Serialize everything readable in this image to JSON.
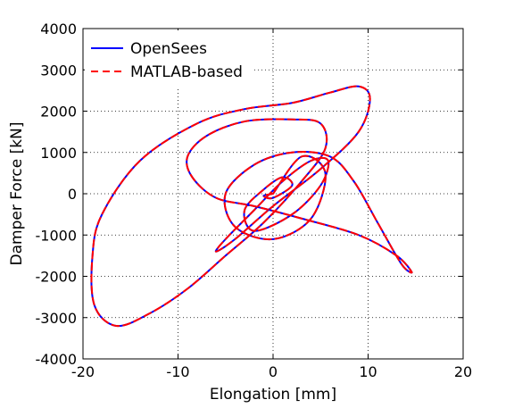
{
  "chart_data": {
    "type": "line",
    "xlabel": "Elongation [mm]",
    "ylabel": "Damper Force [kN]",
    "xlim": [
      -20,
      20
    ],
    "ylim": [
      -4000,
      4000
    ],
    "xticks": [
      -20,
      -10,
      0,
      10,
      20
    ],
    "yticks": [
      -4000,
      -3000,
      -2000,
      -1000,
      0,
      1000,
      2000,
      3000,
      4000
    ],
    "grid": true,
    "legend_position": "top-left",
    "series": [
      {
        "name": "OpenSees",
        "color": "#0000ff",
        "style": "solid",
        "x": [
          0,
          3,
          5.5,
          4,
          0,
          -4,
          -5,
          -2,
          2,
          6,
          8.5,
          11,
          13.5,
          14.6,
          13,
          9,
          3,
          -2,
          -6,
          -8.5,
          -9,
          -7,
          -3,
          2,
          5,
          5.5,
          3,
          -1,
          -5,
          -9,
          -13,
          -16.5,
          -18.8,
          -19,
          -18,
          -14,
          -8,
          -3,
          2,
          6,
          9,
          10.2,
          9,
          5,
          0,
          -4,
          -6,
          -5,
          -2,
          1,
          4,
          5.8,
          5,
          2,
          -2,
          -3,
          -1,
          1,
          2,
          0,
          -1,
          0
        ],
        "y": [
          0,
          900,
          500,
          -600,
          -1100,
          -800,
          0,
          700,
          1000,
          900,
          300,
          -700,
          -1700,
          -1900,
          -1500,
          -1000,
          -600,
          -300,
          -100,
          400,
          900,
          1400,
          1750,
          1800,
          1700,
          1100,
          300,
          -700,
          -1500,
          -2300,
          -2900,
          -3200,
          -2700,
          -1500,
          -500,
          800,
          1700,
          2050,
          2200,
          2450,
          2600,
          2300,
          1500,
          600,
          -300,
          -1100,
          -1400,
          -1100,
          -400,
          300,
          800,
          800,
          200,
          -500,
          -900,
          -400,
          100,
          400,
          200,
          -100,
          -50,
          0
        ]
      },
      {
        "name": "MATLAB-based",
        "color": "#ff0000",
        "style": "dashed",
        "x": [
          0,
          3,
          5.5,
          4,
          0,
          -4,
          -5,
          -2,
          2,
          6,
          8.5,
          11,
          13.5,
          14.6,
          13,
          9,
          3,
          -2,
          -6,
          -8.5,
          -9,
          -7,
          -3,
          2,
          5,
          5.5,
          3,
          -1,
          -5,
          -9,
          -13,
          -16.5,
          -18.8,
          -19,
          -18,
          -14,
          -8,
          -3,
          2,
          6,
          9,
          10.2,
          9,
          5,
          0,
          -4,
          -6,
          -5,
          -2,
          1,
          4,
          5.8,
          5,
          2,
          -2,
          -3,
          -1,
          1,
          2,
          0,
          -1,
          0
        ],
        "y": [
          0,
          900,
          500,
          -600,
          -1100,
          -800,
          0,
          700,
          1000,
          900,
          300,
          -700,
          -1700,
          -1900,
          -1500,
          -1000,
          -600,
          -300,
          -100,
          400,
          900,
          1400,
          1750,
          1800,
          1700,
          1100,
          300,
          -700,
          -1500,
          -2300,
          -2900,
          -3200,
          -2700,
          -1500,
          -500,
          800,
          1700,
          2050,
          2200,
          2450,
          2600,
          2300,
          1500,
          600,
          -300,
          -1100,
          -1400,
          -1100,
          -400,
          300,
          800,
          800,
          200,
          -500,
          -900,
          -400,
          100,
          400,
          200,
          -100,
          -50,
          0
        ]
      }
    ]
  }
}
